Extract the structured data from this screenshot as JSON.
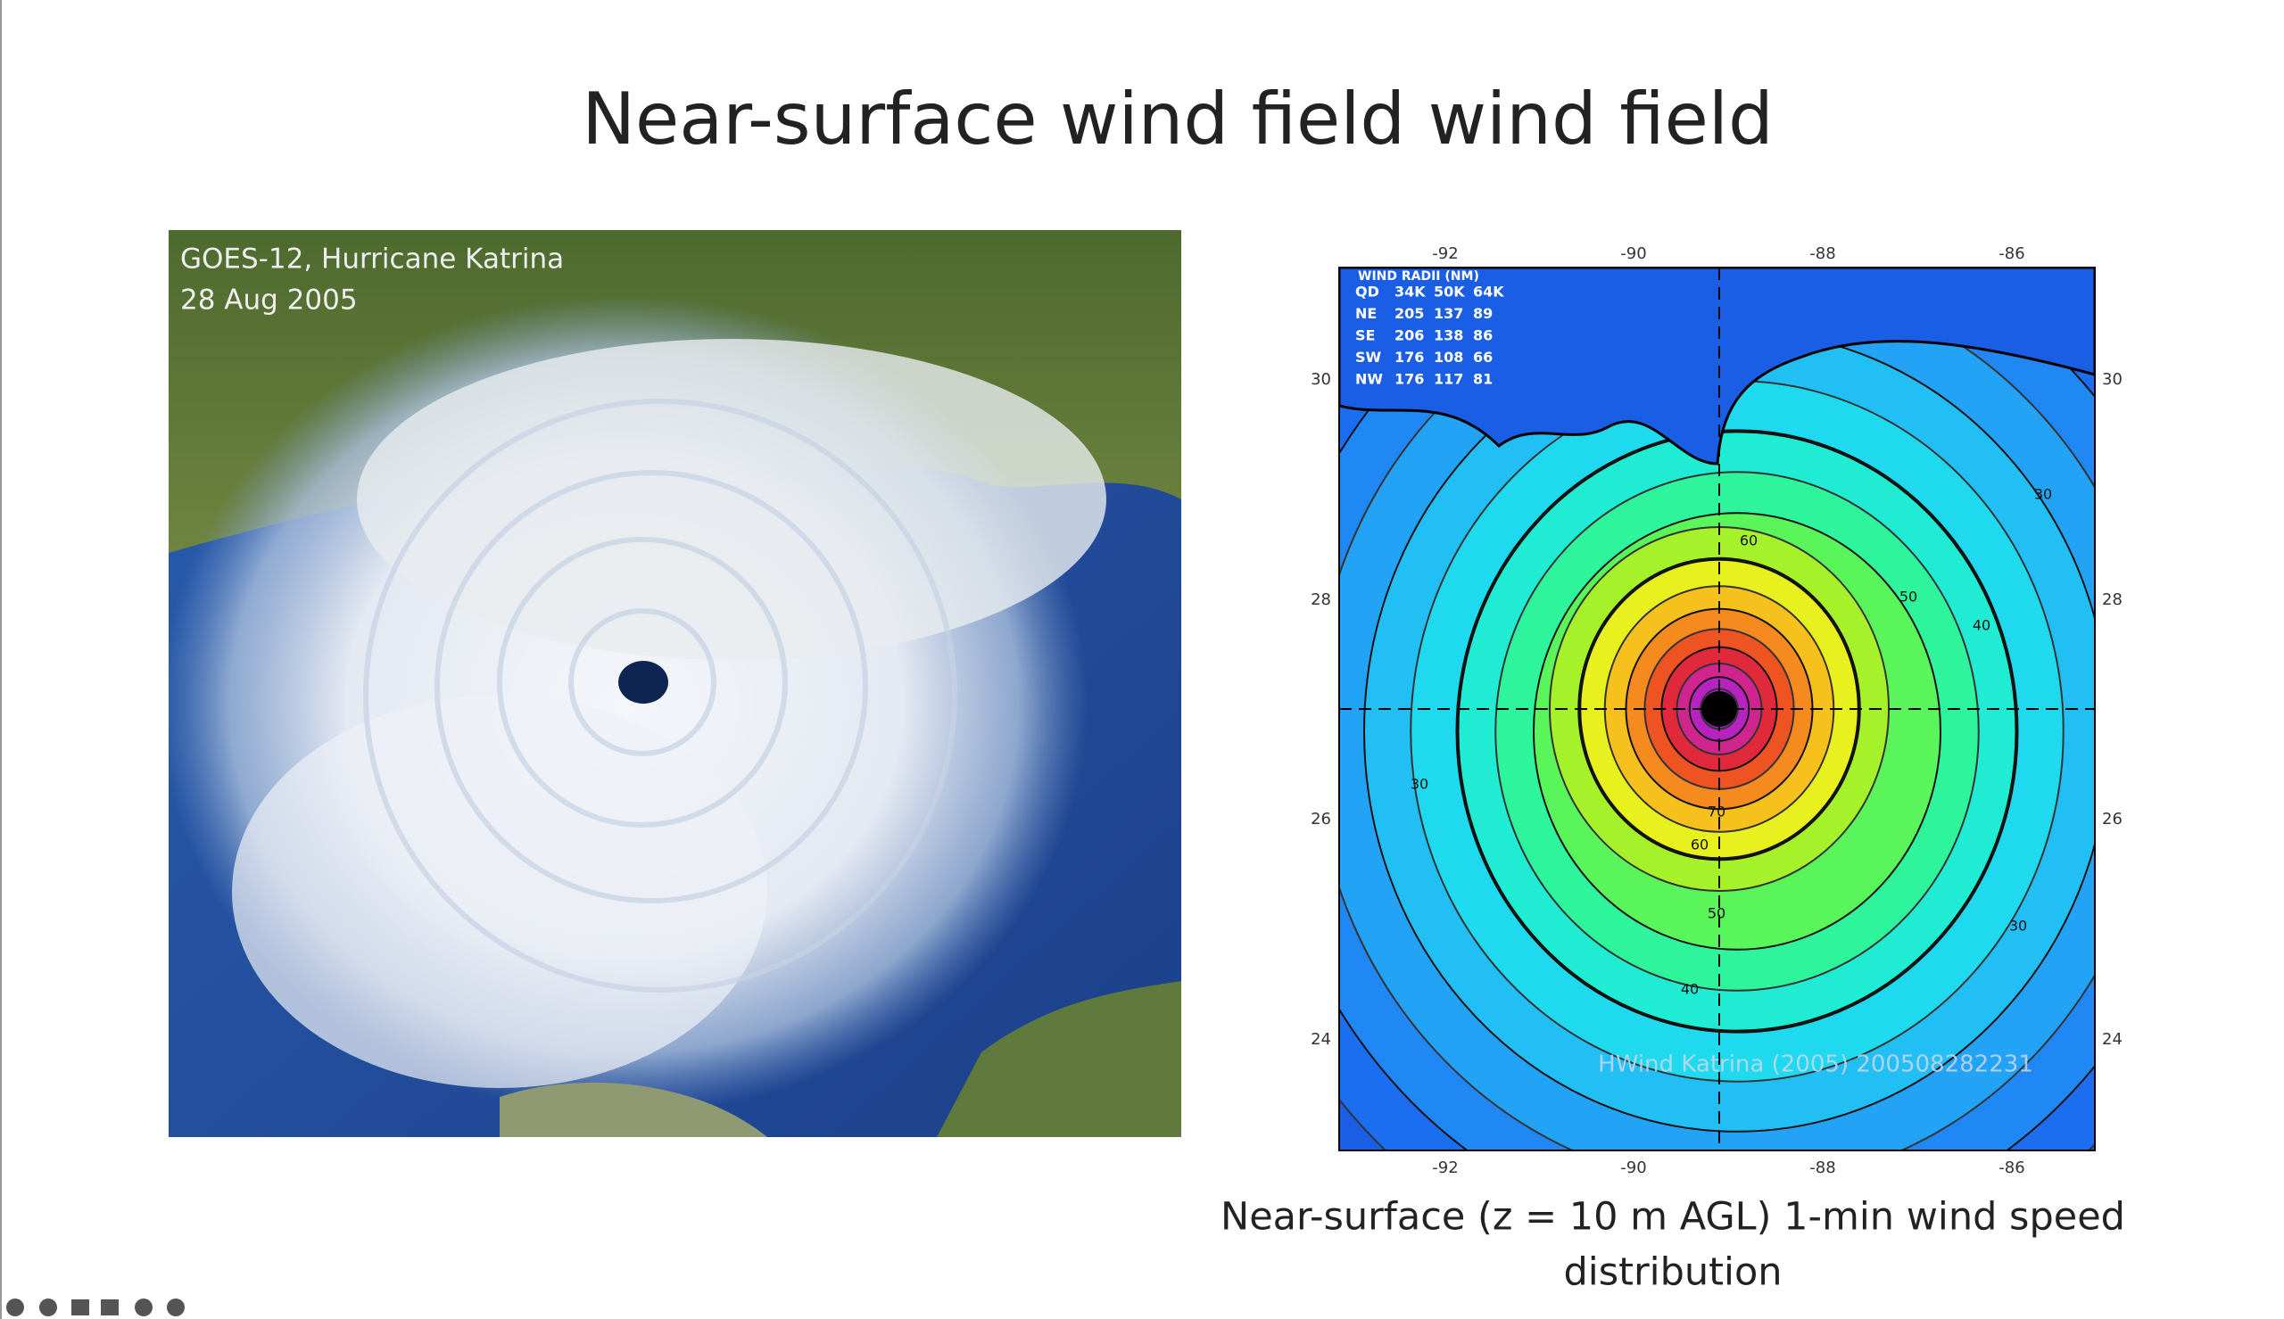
{
  "slide": {
    "title": "Near-surface wind field wind field",
    "caption_lines": [
      "Near-surface (z = 10 m AGL) 1-min wind speed",
      "distribution"
    ]
  },
  "satellite_image": {
    "label_lines": [
      "GOES-12, Hurricane Katrina",
      "28 Aug 2005"
    ]
  },
  "wind_map": {
    "x_labels": [
      "-92",
      "-90",
      "-88",
      "-86"
    ],
    "y_labels": [
      "30",
      "28",
      "26",
      "24"
    ],
    "radii_table": {
      "header": "WIND RADII (NM)",
      "rows": [
        [
          "QD",
          "34K",
          "50K",
          "64K"
        ],
        [
          "NE",
          "205",
          "137",
          "89"
        ],
        [
          "SE",
          "206",
          "138",
          "86"
        ],
        [
          "SW",
          "176",
          "108",
          "66"
        ],
        [
          "NW",
          "176",
          "117",
          "81"
        ]
      ]
    },
    "contour_labels": [
      "60",
      "50",
      "40",
      "70",
      "60",
      "50",
      "40",
      "30",
      "30",
      "30"
    ],
    "credit": "HWind Katrina (2005) 200508282231"
  }
}
